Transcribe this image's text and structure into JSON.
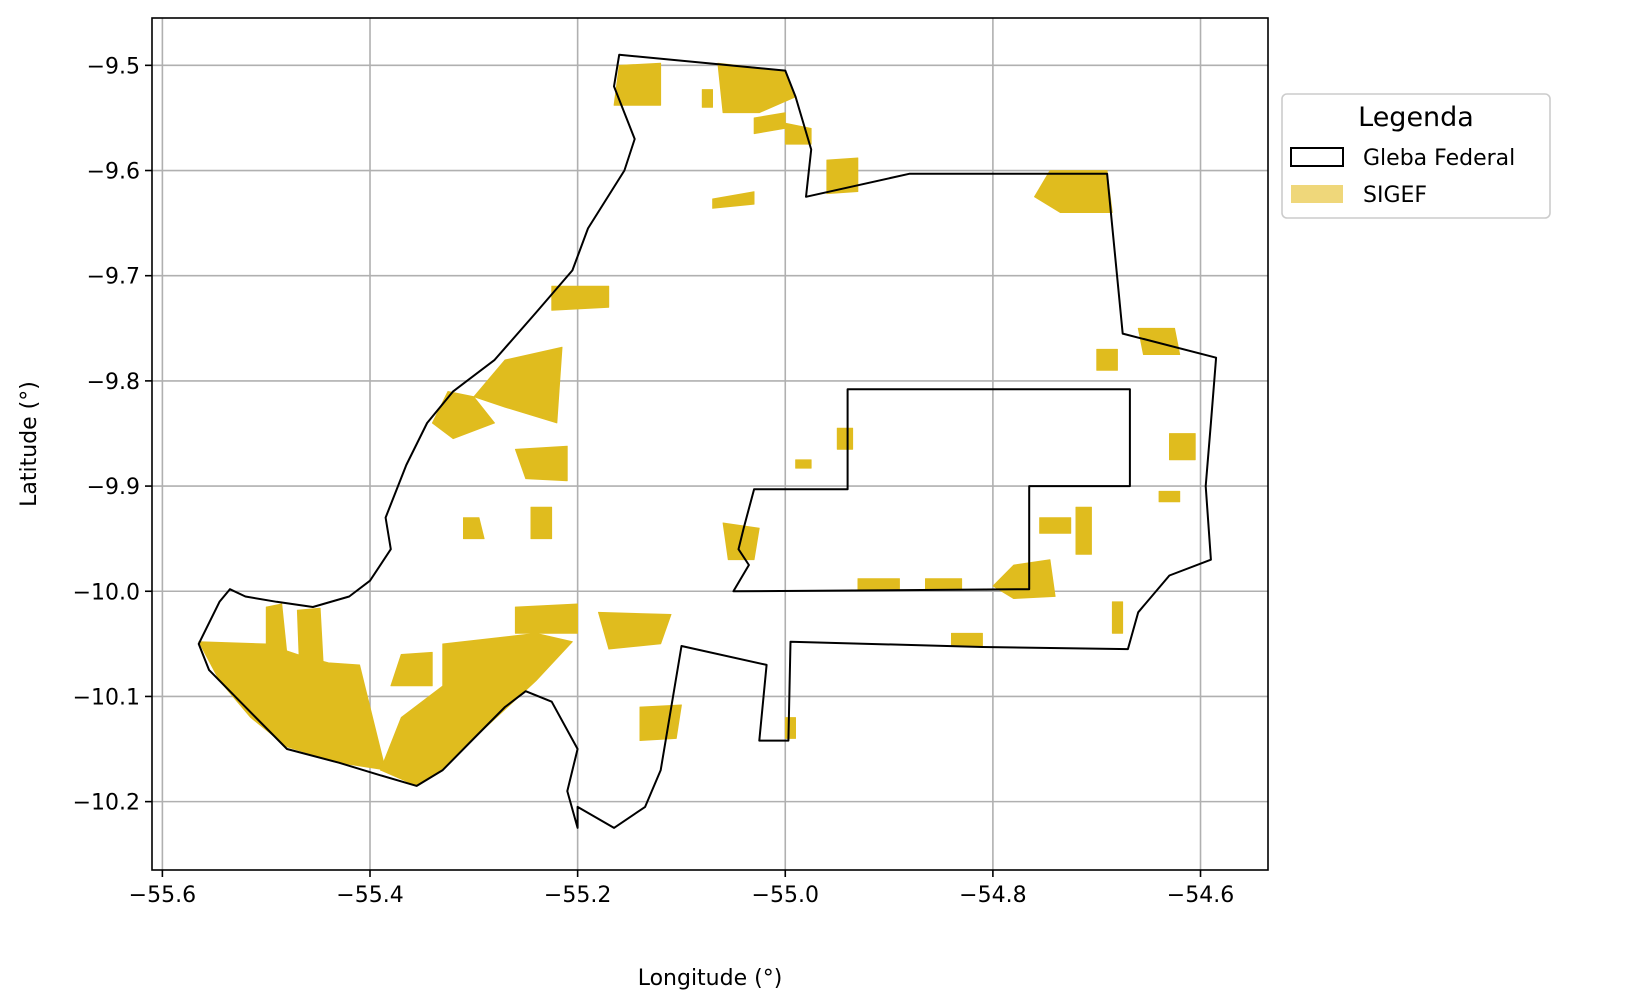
{
  "chart_data": {
    "type": "map",
    "xlabel": "Longitude (°)",
    "ylabel": "Latitude (°)",
    "xlim": [
      -55.61,
      -54.535
    ],
    "ylim": [
      -10.265,
      -9.455
    ],
    "x_ticks": [
      -55.6,
      -55.4,
      -55.2,
      -55.0,
      -54.8,
      -54.6
    ],
    "x_tick_labels": [
      "−55.6",
      "−55.4",
      "−55.2",
      "−55.0",
      "−54.8",
      "−54.6"
    ],
    "y_ticks": [
      -9.5,
      -9.6,
      -9.7,
      -9.8,
      -9.9,
      -10.0,
      -10.1,
      -10.2
    ],
    "y_tick_labels": [
      "−9.5",
      "−9.6",
      "−9.7",
      "−9.8",
      "−9.9",
      "−10.0",
      "−10.1",
      "−10.2"
    ],
    "grid": true,
    "legend": {
      "title": "Legenda",
      "placement": "outside-right-top",
      "entries": [
        {
          "label": "Gleba Federal",
          "style": "outline",
          "color": "#000000"
        },
        {
          "label": "SIGEF",
          "style": "fill",
          "color": "#e6c233"
        }
      ]
    },
    "colors": {
      "gleba_edge": "#000000",
      "sigef_fill": "#e0bc1e"
    },
    "gleba_boundary": [
      [
        -55.16,
        -9.49
      ],
      [
        -55.0,
        -9.505
      ],
      [
        -54.99,
        -9.53
      ],
      [
        -54.975,
        -9.58
      ],
      [
        -54.98,
        -9.625
      ],
      [
        -54.88,
        -9.603
      ],
      [
        -54.69,
        -9.603
      ],
      [
        -54.675,
        -9.755
      ],
      [
        -54.585,
        -9.778
      ],
      [
        -54.59,
        -9.84
      ],
      [
        -54.595,
        -9.9
      ],
      [
        -54.59,
        -9.97
      ],
      [
        -54.63,
        -9.985
      ],
      [
        -54.66,
        -10.02
      ],
      [
        -54.67,
        -10.055
      ],
      [
        -54.81,
        -10.053
      ],
      [
        -54.995,
        -10.048
      ],
      [
        -54.997,
        -10.142
      ],
      [
        -55.025,
        -10.142
      ],
      [
        -55.018,
        -10.07
      ],
      [
        -55.1,
        -10.052
      ],
      [
        -55.12,
        -10.17
      ],
      [
        -55.135,
        -10.205
      ],
      [
        -55.165,
        -10.225
      ],
      [
        -55.2,
        -10.205
      ],
      [
        -55.2,
        -10.225
      ],
      [
        -55.21,
        -10.19
      ],
      [
        -55.2,
        -10.15
      ],
      [
        -55.225,
        -10.105
      ],
      [
        -55.25,
        -10.095
      ],
      [
        -55.27,
        -10.11
      ],
      [
        -55.3,
        -10.14
      ],
      [
        -55.33,
        -10.17
      ],
      [
        -55.355,
        -10.185
      ],
      [
        -55.39,
        -10.175
      ],
      [
        -55.43,
        -10.163
      ],
      [
        -55.48,
        -10.15
      ],
      [
        -55.51,
        -10.12
      ],
      [
        -55.535,
        -10.095
      ],
      [
        -55.555,
        -10.075
      ],
      [
        -55.565,
        -10.05
      ],
      [
        -55.545,
        -10.01
      ],
      [
        -55.535,
        -9.998
      ],
      [
        -55.52,
        -10.005
      ],
      [
        -55.49,
        -10.01
      ],
      [
        -55.455,
        -10.015
      ],
      [
        -55.42,
        -10.005
      ],
      [
        -55.4,
        -9.99
      ],
      [
        -55.38,
        -9.96
      ],
      [
        -55.385,
        -9.93
      ],
      [
        -55.365,
        -9.88
      ],
      [
        -55.345,
        -9.84
      ],
      [
        -55.32,
        -9.81
      ],
      [
        -55.28,
        -9.78
      ],
      [
        -55.24,
        -9.735
      ],
      [
        -55.205,
        -9.695
      ],
      [
        -55.19,
        -9.655
      ],
      [
        -55.155,
        -9.6
      ],
      [
        -55.145,
        -9.57
      ],
      [
        -55.165,
        -9.52
      ],
      [
        -55.16,
        -9.49
      ]
    ],
    "gleba_cutout": [
      [
        -54.94,
        -9.808
      ],
      [
        -54.668,
        -9.808
      ],
      [
        -54.668,
        -9.9
      ],
      [
        -54.765,
        -9.9
      ],
      [
        -54.765,
        -9.998
      ],
      [
        -55.05,
        -10.0
      ],
      [
        -55.035,
        -9.975
      ],
      [
        -55.045,
        -9.96
      ],
      [
        -55.04,
        -9.94
      ],
      [
        -55.03,
        -9.903
      ],
      [
        -54.94,
        -9.903
      ],
      [
        -54.94,
        -9.808
      ]
    ],
    "sigef_parcels": [
      [
        [
          -55.16,
          -9.5
        ],
        [
          -55.12,
          -9.498
        ],
        [
          -55.12,
          -9.538
        ],
        [
          -55.165,
          -9.538
        ]
      ],
      [
        [
          -55.065,
          -9.498
        ],
        [
          -55.0,
          -9.505
        ],
        [
          -54.99,
          -9.53
        ],
        [
          -55.025,
          -9.545
        ],
        [
          -55.06,
          -9.545
        ]
      ],
      [
        [
          -55.03,
          -9.55
        ],
        [
          -55.0,
          -9.545
        ],
        [
          -55.0,
          -9.56
        ],
        [
          -55.03,
          -9.565
        ]
      ],
      [
        [
          -55.0,
          -9.555
        ],
        [
          -54.975,
          -9.56
        ],
        [
          -54.975,
          -9.575
        ],
        [
          -55.0,
          -9.575
        ]
      ],
      [
        [
          -55.08,
          -9.523
        ],
        [
          -55.07,
          -9.523
        ],
        [
          -55.07,
          -9.54
        ],
        [
          -55.08,
          -9.54
        ]
      ],
      [
        [
          -54.96,
          -9.59
        ],
        [
          -54.93,
          -9.588
        ],
        [
          -54.93,
          -9.62
        ],
        [
          -54.96,
          -9.622
        ]
      ],
      [
        [
          -55.07,
          -9.627
        ],
        [
          -55.03,
          -9.62
        ],
        [
          -55.03,
          -9.632
        ],
        [
          -55.07,
          -9.636
        ]
      ],
      [
        [
          -54.745,
          -9.6
        ],
        [
          -54.69,
          -9.6
        ],
        [
          -54.685,
          -9.64
        ],
        [
          -54.735,
          -9.64
        ],
        [
          -54.76,
          -9.625
        ]
      ],
      [
        [
          -55.225,
          -9.71
        ],
        [
          -55.17,
          -9.71
        ],
        [
          -55.17,
          -9.73
        ],
        [
          -55.225,
          -9.733
        ]
      ],
      [
        [
          -55.27,
          -9.78
        ],
        [
          -55.215,
          -9.768
        ],
        [
          -55.22,
          -9.84
        ],
        [
          -55.27,
          -9.825
        ],
        [
          -55.3,
          -9.815
        ]
      ],
      [
        [
          -55.325,
          -9.81
        ],
        [
          -55.3,
          -9.815
        ],
        [
          -55.28,
          -9.84
        ],
        [
          -55.32,
          -9.855
        ],
        [
          -55.34,
          -9.84
        ]
      ],
      [
        [
          -55.26,
          -9.865
        ],
        [
          -55.21,
          -9.862
        ],
        [
          -55.21,
          -9.895
        ],
        [
          -55.25,
          -9.893
        ]
      ],
      [
        [
          -55.31,
          -9.93
        ],
        [
          -55.295,
          -9.93
        ],
        [
          -55.29,
          -9.95
        ],
        [
          -55.31,
          -9.95
        ]
      ],
      [
        [
          -55.245,
          -9.92
        ],
        [
          -55.225,
          -9.92
        ],
        [
          -55.225,
          -9.95
        ],
        [
          -55.245,
          -9.95
        ]
      ],
      [
        [
          -55.06,
          -9.935
        ],
        [
          -55.025,
          -9.94
        ],
        [
          -55.03,
          -9.97
        ],
        [
          -55.055,
          -9.97
        ]
      ],
      [
        [
          -55.18,
          -10.02
        ],
        [
          -55.11,
          -10.022
        ],
        [
          -55.12,
          -10.05
        ],
        [
          -55.17,
          -10.055
        ]
      ],
      [
        [
          -55.565,
          -10.048
        ],
        [
          -55.5,
          -10.05
        ],
        [
          -55.47,
          -10.06
        ],
        [
          -55.44,
          -10.068
        ],
        [
          -55.41,
          -10.07
        ],
        [
          -55.385,
          -10.17
        ],
        [
          -55.43,
          -10.163
        ],
        [
          -55.48,
          -10.148
        ],
        [
          -55.515,
          -10.12
        ],
        [
          -55.545,
          -10.085
        ]
      ],
      [
        [
          -55.5,
          -10.015
        ],
        [
          -55.485,
          -10.012
        ],
        [
          -55.48,
          -10.06
        ],
        [
          -55.5,
          -10.06
        ]
      ],
      [
        [
          -55.47,
          -10.018
        ],
        [
          -55.448,
          -10.016
        ],
        [
          -55.445,
          -10.07
        ],
        [
          -55.468,
          -10.07
        ]
      ],
      [
        [
          -55.37,
          -10.06
        ],
        [
          -55.34,
          -10.058
        ],
        [
          -55.34,
          -10.09
        ],
        [
          -55.38,
          -10.09
        ]
      ],
      [
        [
          -55.33,
          -10.05
        ],
        [
          -55.24,
          -10.04
        ],
        [
          -55.205,
          -10.048
        ],
        [
          -55.24,
          -10.085
        ],
        [
          -55.3,
          -10.14
        ],
        [
          -55.33,
          -10.17
        ],
        [
          -55.355,
          -10.185
        ],
        [
          -55.39,
          -10.17
        ],
        [
          -55.37,
          -10.12
        ],
        [
          -55.33,
          -10.09
        ]
      ],
      [
        [
          -55.26,
          -10.015
        ],
        [
          -55.2,
          -10.012
        ],
        [
          -55.2,
          -10.04
        ],
        [
          -55.26,
          -10.04
        ]
      ],
      [
        [
          -55.14,
          -10.11
        ],
        [
          -55.1,
          -10.108
        ],
        [
          -55.105,
          -10.14
        ],
        [
          -55.14,
          -10.142
        ]
      ],
      [
        [
          -54.865,
          -9.988
        ],
        [
          -54.83,
          -9.988
        ],
        [
          -54.83,
          -9.998
        ],
        [
          -54.865,
          -9.998
        ]
      ],
      [
        [
          -54.93,
          -9.988
        ],
        [
          -54.89,
          -9.988
        ],
        [
          -54.89,
          -9.998
        ],
        [
          -54.93,
          -9.998
        ]
      ],
      [
        [
          -54.78,
          -9.975
        ],
        [
          -54.745,
          -9.97
        ],
        [
          -54.74,
          -10.005
        ],
        [
          -54.78,
          -10.007
        ],
        [
          -54.8,
          -9.995
        ]
      ],
      [
        [
          -54.755,
          -9.93
        ],
        [
          -54.725,
          -9.93
        ],
        [
          -54.725,
          -9.945
        ],
        [
          -54.755,
          -9.945
        ]
      ],
      [
        [
          -54.72,
          -9.92
        ],
        [
          -54.705,
          -9.92
        ],
        [
          -54.705,
          -9.965
        ],
        [
          -54.72,
          -9.965
        ]
      ],
      [
        [
          -54.84,
          -10.04
        ],
        [
          -54.81,
          -10.04
        ],
        [
          -54.81,
          -10.052
        ],
        [
          -54.84,
          -10.052
        ]
      ],
      [
        [
          -54.7,
          -9.77
        ],
        [
          -54.68,
          -9.77
        ],
        [
          -54.68,
          -9.79
        ],
        [
          -54.7,
          -9.79
        ]
      ],
      [
        [
          -54.66,
          -9.75
        ],
        [
          -54.625,
          -9.75
        ],
        [
          -54.62,
          -9.775
        ],
        [
          -54.655,
          -9.775
        ]
      ],
      [
        [
          -54.95,
          -9.845
        ],
        [
          -54.935,
          -9.845
        ],
        [
          -54.935,
          -9.865
        ],
        [
          -54.95,
          -9.865
        ]
      ],
      [
        [
          -54.99,
          -9.875
        ],
        [
          -54.975,
          -9.875
        ],
        [
          -54.975,
          -9.883
        ],
        [
          -54.99,
          -9.883
        ]
      ],
      [
        [
          -54.63,
          -9.85
        ],
        [
          -54.605,
          -9.85
        ],
        [
          -54.605,
          -9.875
        ],
        [
          -54.63,
          -9.875
        ]
      ],
      [
        [
          -54.64,
          -9.905
        ],
        [
          -54.62,
          -9.905
        ],
        [
          -54.62,
          -9.915
        ],
        [
          -54.64,
          -9.915
        ]
      ],
      [
        [
          -54.685,
          -10.01
        ],
        [
          -54.675,
          -10.01
        ],
        [
          -54.675,
          -10.04
        ],
        [
          -54.685,
          -10.04
        ]
      ],
      [
        [
          -55.0,
          -10.12
        ],
        [
          -54.99,
          -10.12
        ],
        [
          -54.99,
          -10.14
        ],
        [
          -55.0,
          -10.14
        ]
      ]
    ]
  }
}
